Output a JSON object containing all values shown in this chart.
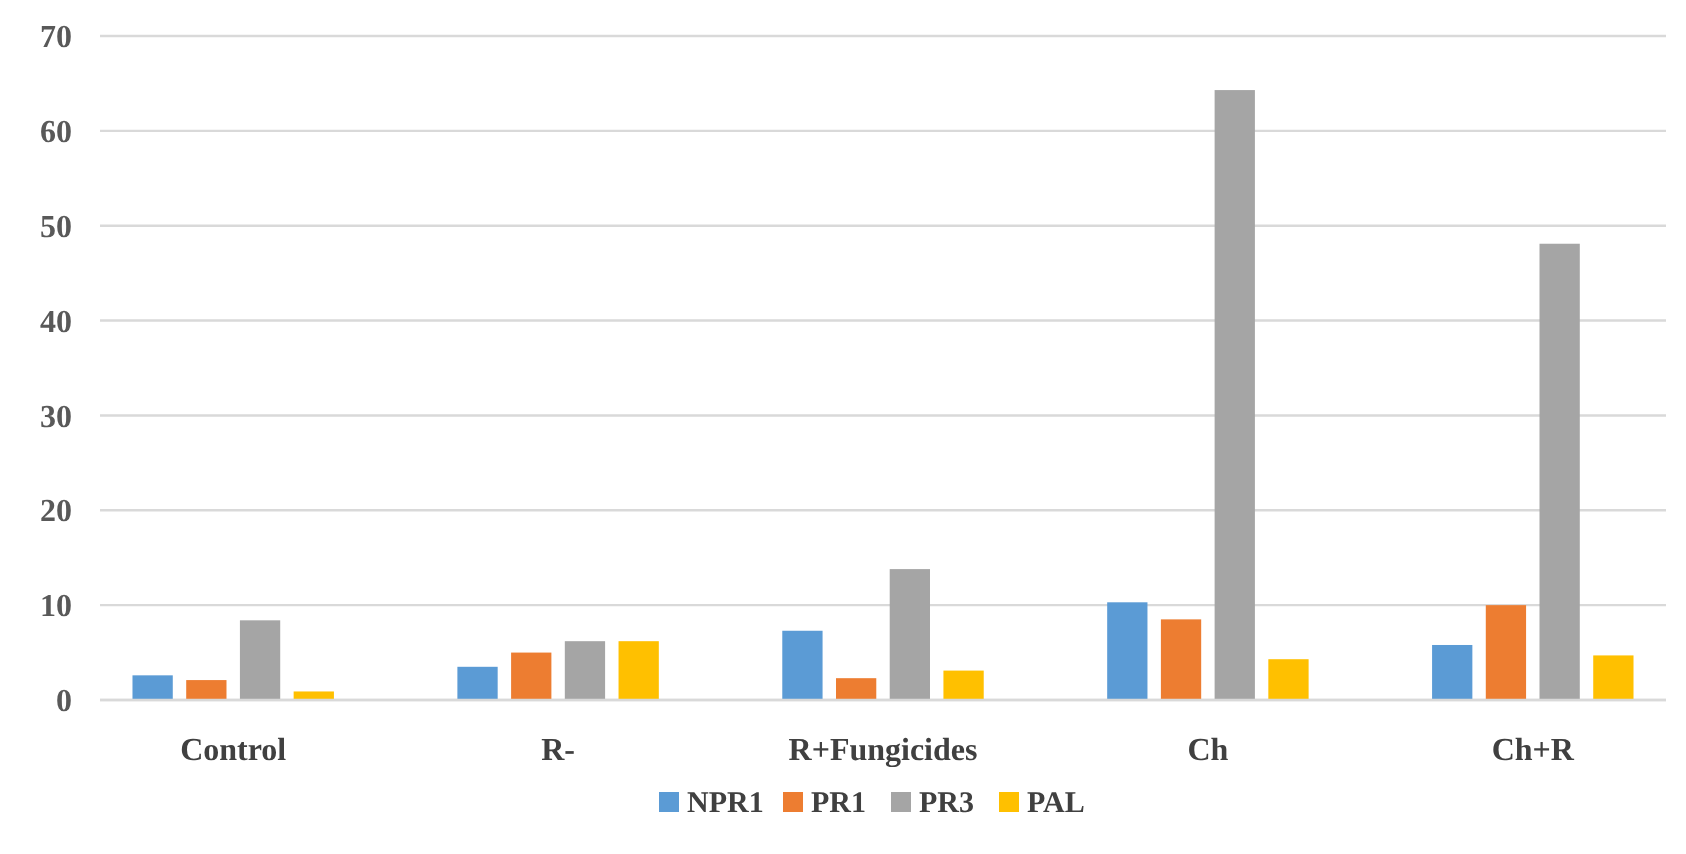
{
  "chart_data": {
    "type": "bar",
    "categories": [
      "Control",
      "R-",
      "R+Fungicides",
      "Ch",
      "Ch+R"
    ],
    "series": [
      {
        "name": "NPR1",
        "color": "#5b9bd5",
        "values": [
          2.6,
          3.5,
          7.3,
          10.3,
          5.8
        ]
      },
      {
        "name": "PR1",
        "color": "#ed7d31",
        "values": [
          2.1,
          5.0,
          2.3,
          8.5,
          10.0
        ]
      },
      {
        "name": "PR3",
        "color": "#a5a5a5",
        "values": [
          8.4,
          6.2,
          13.8,
          64.3,
          48.1
        ]
      },
      {
        "name": "PAL",
        "color": "#ffc000",
        "values": [
          0.9,
          6.2,
          3.1,
          4.3,
          4.7
        ]
      }
    ],
    "ylim": [
      0,
      70
    ],
    "yticks": [
      0,
      10,
      20,
      30,
      40,
      50,
      60,
      70
    ],
    "grid": "y",
    "legend": "bottom"
  }
}
